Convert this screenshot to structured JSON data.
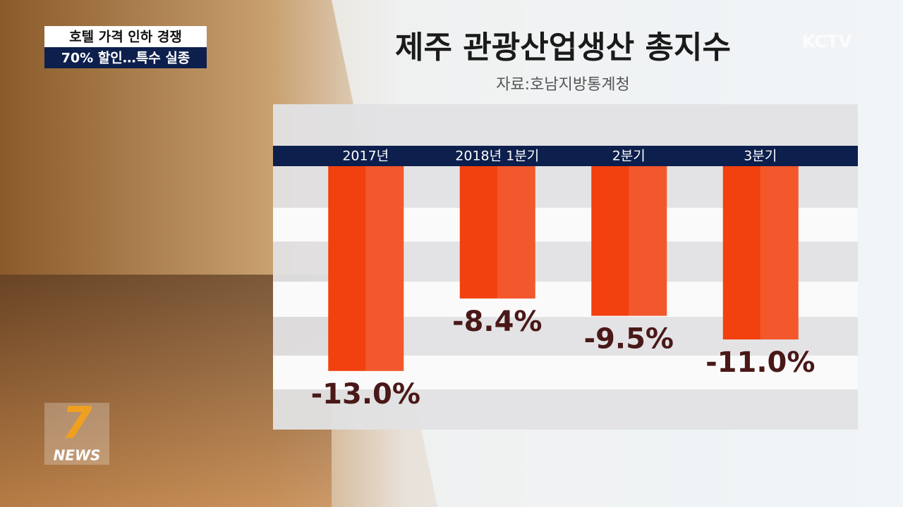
{
  "caption": {
    "line1": "호텔 가격 인하 경쟁",
    "line2": "70% 할인…특수 실종"
  },
  "logo": {
    "channel": "KCTV",
    "news_number": "7",
    "news": "NEWS"
  },
  "chart_data": {
    "type": "bar",
    "title": "제주 관광산업생산 총지수",
    "subtitle": "자료:호남지방통계청",
    "categories": [
      "2017년",
      "2018년 1분기",
      "2분기",
      "3분기"
    ],
    "values": [
      -13.0,
      -8.4,
      -9.5,
      -11.0
    ],
    "value_labels": [
      "-13.0%",
      "-8.4%",
      "-9.5%",
      "-11.0%"
    ],
    "color": "#f2400f",
    "ylim": [
      0,
      -13.5
    ]
  }
}
